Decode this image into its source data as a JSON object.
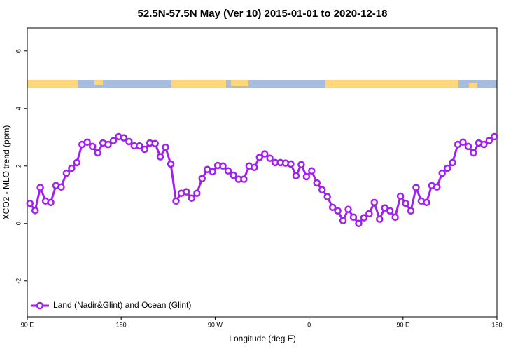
{
  "chart_data": {
    "type": "line",
    "title": "52.5N-57.5N May (Ver 10)   2015-01-01 to 2020-12-18",
    "x_label": "Longitude (deg E)",
    "y_label": "XCO2 - MLO trend (ppm)",
    "xlim": [
      90,
      540
    ],
    "ylim": [
      -3.25,
      6.8
    ],
    "xticks": [
      {
        "value": 90,
        "label": "90 E"
      },
      180,
      {
        "value": 270,
        "label": "90 W"
      },
      {
        "value": 360,
        "label": "0"
      },
      {
        "value": 450,
        "label": "90 E"
      },
      {
        "value": 540,
        "label": "180"
      }
    ],
    "yticks": [
      -2,
      0,
      2,
      4,
      6
    ],
    "legend": "bottom-left",
    "x": [
      92.5,
      97.5,
      102.5,
      107.5,
      112.5,
      117.5,
      122.5,
      127.5,
      132.5,
      137.5,
      142.5,
      147.5,
      152.5,
      157.5,
      162.5,
      167.5,
      172.5,
      177.5,
      182.5,
      187.5,
      192.5,
      197.5,
      202.5,
      207.5,
      212.5,
      217.5,
      222.5,
      227.5,
      232.5,
      237.5,
      242.5,
      247.5,
      252.5,
      257.5,
      262.5,
      267.5,
      272.5,
      277.5,
      282.5,
      287.5,
      292.5,
      297.5,
      302.5,
      307.5,
      312.5,
      317.5,
      322.5,
      327.5,
      332.5,
      337.5,
      342.5,
      347.5,
      352.5,
      357.5,
      362.5,
      367.5,
      372.5,
      377.5,
      382.5,
      387.5,
      392.5,
      397.5,
      402.5,
      407.5,
      412.5,
      417.5,
      422.5,
      427.5,
      432.5,
      437.5,
      442.5,
      447.5,
      452.5,
      457.5,
      462.5,
      467.5,
      472.5,
      477.5,
      482.5,
      487.5,
      492.5,
      497.5,
      502.5,
      507.5,
      512.5,
      517.5,
      522.5,
      527.5,
      532.5,
      537.5
    ],
    "series": [
      {
        "name": "Land (Nadir&Glint) and Ocean (Glint)",
        "color": "#a020f0",
        "values": [
          0.7,
          0.45,
          1.25,
          0.78,
          0.73,
          1.32,
          1.27,
          1.75,
          1.92,
          2.12,
          2.75,
          2.83,
          2.68,
          2.46,
          2.8,
          2.75,
          2.88,
          3.02,
          2.98,
          2.85,
          2.7,
          2.7,
          2.58,
          2.8,
          2.78,
          2.32,
          2.65,
          2.07,
          0.78,
          1.05,
          1.1,
          0.88,
          1.05,
          1.56,
          1.88,
          1.8,
          2.02,
          2.0,
          1.83,
          1.68,
          1.54,
          1.54,
          2.0,
          1.95,
          2.3,
          2.42,
          2.27,
          2.12,
          2.12,
          2.1,
          2.07,
          1.66,
          2.05,
          1.63,
          1.83,
          1.41,
          1.17,
          0.93,
          0.56,
          0.44,
          0.1,
          0.49,
          0.22,
          0.0,
          0.2,
          0.34,
          0.73,
          0.15,
          0.54,
          0.44,
          0.22,
          0.95,
          0.7,
          0.44,
          1.25,
          0.78,
          0.73,
          1.32,
          1.27,
          1.75,
          1.92,
          2.12,
          2.75,
          2.83,
          2.68,
          2.46,
          2.8,
          2.75,
          2.88,
          3.02
        ]
      }
    ]
  }
}
